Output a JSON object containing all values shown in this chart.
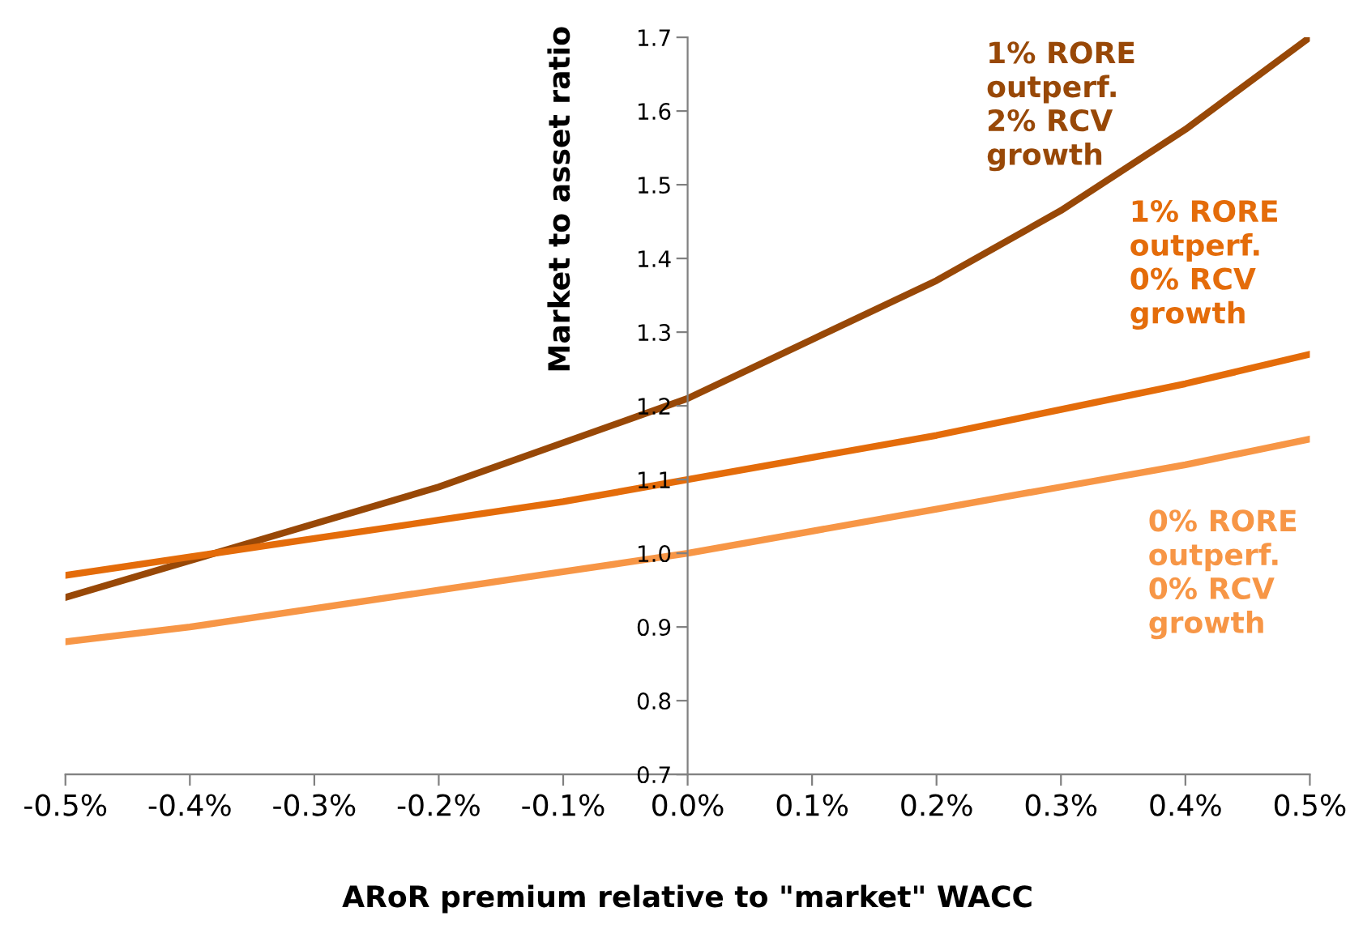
{
  "chart_data": {
    "type": "line",
    "xlabel": "ARoR premium relative to \"market\" WACC",
    "ylabel": "Market to asset ratio",
    "x": [
      -0.5,
      -0.4,
      -0.3,
      -0.2,
      -0.1,
      0.0,
      0.1,
      0.2,
      0.3,
      0.4,
      0.5
    ],
    "series": [
      {
        "name": "1% RORE\noutperf.\n2% RCV\ngrowth",
        "color": "#984807",
        "values": [
          0.94,
          0.99,
          1.04,
          1.09,
          1.15,
          1.21,
          1.29,
          1.37,
          1.465,
          1.575,
          1.7
        ]
      },
      {
        "name": "1% RORE\noutperf.\n0% RCV\ngrowth",
        "color": "#e46c0a",
        "values": [
          0.97,
          0.995,
          1.02,
          1.045,
          1.07,
          1.1,
          1.13,
          1.16,
          1.195,
          1.23,
          1.27
        ]
      },
      {
        "name": "0% RORE\noutperf.\n0% RCV\ngrowth",
        "color": "#f79646",
        "values": [
          0.88,
          0.9,
          0.925,
          0.95,
          0.975,
          1.0,
          1.03,
          1.06,
          1.09,
          1.12,
          1.155
        ]
      }
    ],
    "xlim": [
      -0.5,
      0.5
    ],
    "xticks": [
      {
        "value": -0.5,
        "label": "-0.5%"
      },
      {
        "value": -0.4,
        "label": "-0.4%"
      },
      {
        "value": -0.3,
        "label": "-0.3%"
      },
      {
        "value": -0.2,
        "label": "-0.2%"
      },
      {
        "value": -0.1,
        "label": "-0.1%"
      },
      {
        "value": 0.0,
        "label": "0.0%"
      },
      {
        "value": 0.1,
        "label": "0.1%"
      },
      {
        "value": 0.2,
        "label": "0.2%"
      },
      {
        "value": 0.3,
        "label": "0.3%"
      },
      {
        "value": 0.4,
        "label": "0.4%"
      },
      {
        "value": 0.5,
        "label": "0.5%"
      }
    ],
    "ylim": [
      0.7,
      1.7
    ],
    "yticks": [
      {
        "value": 0.7,
        "label": "0.7"
      },
      {
        "value": 0.8,
        "label": "0.8"
      },
      {
        "value": 0.9,
        "label": "0.9"
      },
      {
        "value": 1.0,
        "label": "1.0"
      },
      {
        "value": 1.1,
        "label": "1.1"
      },
      {
        "value": 1.2,
        "label": "1.2"
      },
      {
        "value": 1.3,
        "label": "1.3"
      },
      {
        "value": 1.4,
        "label": "1.4"
      },
      {
        "value": 1.5,
        "label": "1.5"
      },
      {
        "value": 1.6,
        "label": "1.6"
      },
      {
        "value": 1.7,
        "label": "1.7"
      }
    ],
    "grid": false,
    "marker": "none",
    "line_style": "solid"
  }
}
